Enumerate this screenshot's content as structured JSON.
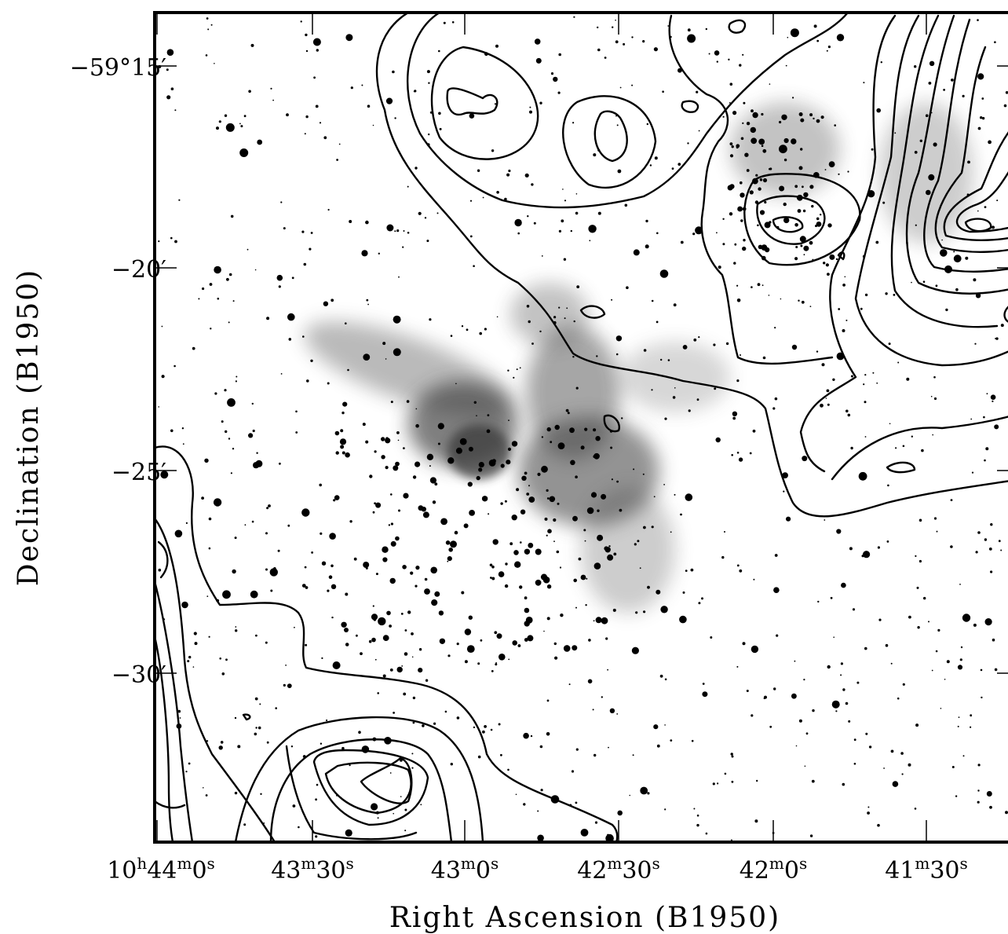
{
  "figure": {
    "xlabel": "Right Ascension (B1950)",
    "ylabel": "Declination (B1950)",
    "ra_ticks": [
      {
        "h": "10",
        "m": "44",
        "s": "0"
      },
      {
        "h": "",
        "m": "43",
        "s": "30"
      },
      {
        "h": "",
        "m": "43",
        "s": "0"
      },
      {
        "h": "",
        "m": "42",
        "s": "30"
      },
      {
        "h": "",
        "m": "42",
        "s": "0"
      },
      {
        "h": "",
        "m": "41",
        "s": "30"
      }
    ],
    "dec_ticks": [
      "−59°15′",
      "−20′",
      "−25′",
      "−30′"
    ],
    "colors": {
      "background": "#ffffff",
      "ink": "#000000",
      "nebula": "#3a3a3a"
    }
  }
}
